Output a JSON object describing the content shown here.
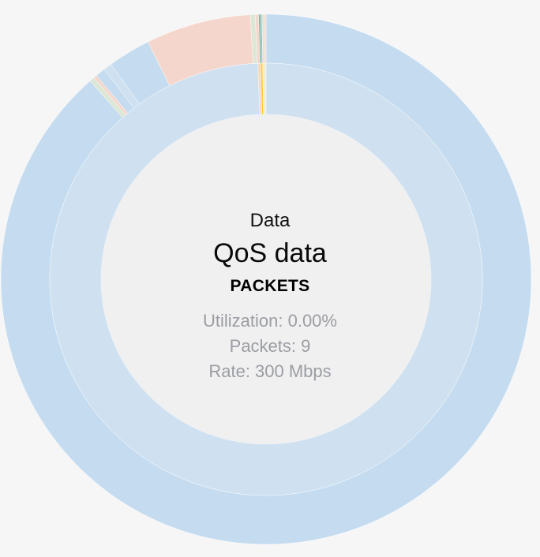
{
  "center": {
    "parent": "Data",
    "name": "QoS data",
    "metric": "PACKETS",
    "utilization": "Utilization: 0.00%",
    "packets": "Packets: 9",
    "rate": "Rate: 300 Mbps"
  },
  "chart_data": {
    "type": "sunburst",
    "title": "",
    "rings": [
      {
        "name": "",
        "segments": [
          {
            "value": 0.994,
            "color": "#cfe1f1"
          },
          {
            "value": 0.002,
            "color": "#f5d6cc"
          },
          {
            "value": 0.0015,
            "color": "#ffcc33"
          },
          {
            "value": 0.0025,
            "color": "#eeeed8"
          }
        ]
      },
      {
        "name": "",
        "segments": [
          {
            "value": 0.885,
            "color": "#c5dcf0"
          },
          {
            "value": 0.003,
            "color": "#dde7d5"
          },
          {
            "value": 0.002,
            "color": "#f5d6cc"
          },
          {
            "value": 0.006,
            "color": "#c5dcf0"
          },
          {
            "value": 0.005,
            "color": "#cfe1f1"
          },
          {
            "value": 0.026,
            "color": "#c5dcf0"
          },
          {
            "value": 0.064,
            "color": "#f5d6cc"
          },
          {
            "value": 0.003,
            "color": "#dde7d5"
          },
          {
            "value": 0.002,
            "color": "#f5d6cc"
          },
          {
            "value": 0.0012,
            "color": "#7cc0a0"
          },
          {
            "value": 0.0008,
            "color": "#a8a8c8"
          },
          {
            "value": 0.0015,
            "color": "#dde7d5"
          },
          {
            "value": 0.001,
            "color": "#f5d6cc"
          }
        ]
      }
    ]
  }
}
